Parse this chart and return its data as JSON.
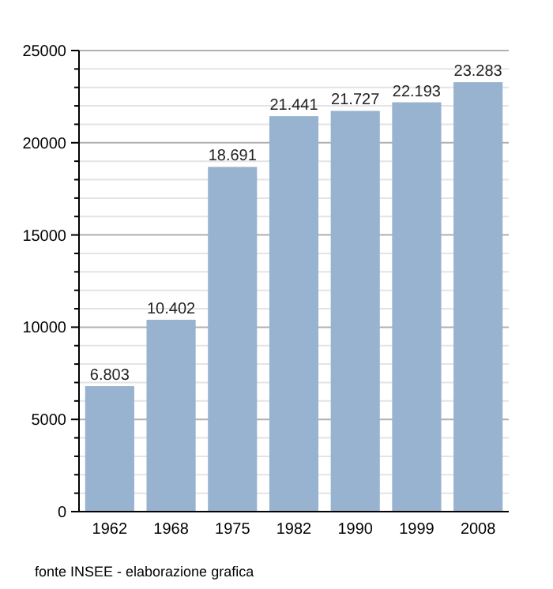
{
  "chart_data": {
    "type": "bar",
    "categories": [
      "1962",
      "1968",
      "1975",
      "1982",
      "1990",
      "1999",
      "2008"
    ],
    "values": [
      6803,
      10402,
      18691,
      21441,
      21727,
      22193,
      23283
    ],
    "value_labels": [
      "6.803",
      "10.402",
      "18.691",
      "21.441",
      "21.727",
      "22.193",
      "23.283"
    ],
    "color": "#98b3d0",
    "ylim": [
      0,
      25000
    ],
    "yticks": [
      0,
      {
        "value": 1000,
        "label": null
      },
      {
        "value": 2000,
        "label": null
      },
      {
        "value": 3000,
        "label": null
      },
      {
        "value": 4000,
        "label": null
      },
      5000,
      {
        "value": 6000,
        "label": null
      },
      {
        "value": 7000,
        "label": null
      },
      {
        "value": 8000,
        "label": null
      },
      {
        "value": 9000,
        "label": null
      },
      10000,
      {
        "value": 11000,
        "label": null
      },
      {
        "value": 12000,
        "label": null
      },
      {
        "value": 13000,
        "label": null
      },
      {
        "value": 14000,
        "label": null
      },
      15000,
      {
        "value": 16000,
        "label": null
      },
      {
        "value": 17000,
        "label": null
      },
      {
        "value": 18000,
        "label": null
      },
      {
        "value": 19000,
        "label": null
      },
      20000,
      {
        "value": 21000,
        "label": null
      },
      {
        "value": 22000,
        "label": null
      },
      {
        "value": 23000,
        "label": null
      },
      {
        "value": 24000,
        "label": null
      },
      25000
    ],
    "grid": "y",
    "annotations": [
      "fonte INSEE - elaborazione grafica"
    ]
  }
}
